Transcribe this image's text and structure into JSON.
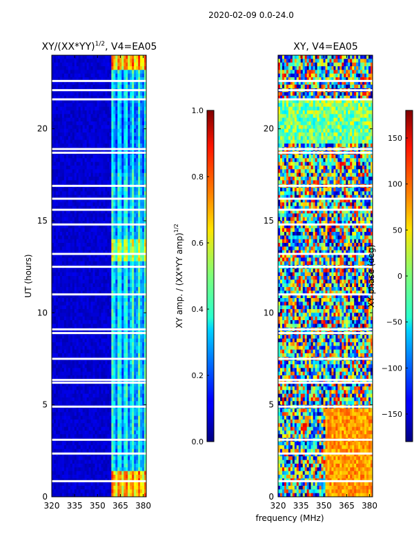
{
  "figure_title": "2020-02-09 0.0-24.0",
  "chart_data": [
    {
      "type": "heatmap",
      "title_main": "XY/(XX*YY)",
      "title_sup": "1/2",
      "title_tail": ", V4=EA05",
      "xlabel": "",
      "ylabel": "UT (hours)",
      "xlim": [
        320,
        382
      ],
      "ylim": [
        0,
        24
      ],
      "xticks": [
        320,
        335,
        350,
        365,
        380
      ],
      "yticks": [
        0,
        5,
        10,
        15,
        20
      ],
      "colorbar": {
        "label_main": "XY amp. / (XX*YY amp)",
        "label_sup": "1/2",
        "range": [
          0.0,
          1.0
        ],
        "ticks": [
          "0.0",
          "0.2",
          "0.4",
          "0.6",
          "0.8",
          "1.0"
        ],
        "tick_values": [
          0.0,
          0.2,
          0.4,
          0.6,
          0.8,
          1.0
        ],
        "colormap": "jet"
      },
      "gap_hours": [
        0.85,
        2.35,
        3.1,
        4.9,
        6.2,
        6.35,
        7.5,
        8.9,
        9.1,
        11.0,
        12.5,
        13.2,
        14.8,
        15.6,
        16.2,
        16.9,
        18.7,
        18.9,
        21.6,
        22.1,
        22.6
      ]
    },
    {
      "type": "heatmap",
      "title": "XY, V4=EA05",
      "xlabel": "frequency (MHz)",
      "ylabel": "",
      "xlim": [
        320,
        382
      ],
      "ylim": [
        0,
        24
      ],
      "xticks": [
        320,
        335,
        350,
        365,
        380
      ],
      "yticks": [
        0,
        5,
        10,
        15,
        20
      ],
      "colorbar": {
        "label": "XY phase (deg)",
        "range": [
          -180,
          180
        ],
        "ticks": [
          "150",
          "100",
          "50",
          "0",
          "−50",
          "−100",
          "−150"
        ],
        "tick_values": [
          150,
          100,
          50,
          0,
          -50,
          -100,
          -150
        ],
        "colormap": "jet"
      },
      "gap_hours": [
        0.85,
        2.35,
        3.1,
        4.9,
        6.2,
        6.35,
        7.5,
        8.9,
        9.1,
        11.0,
        12.5,
        13.2,
        14.8,
        15.6,
        16.2,
        16.9,
        18.7,
        18.9,
        21.6,
        22.1,
        22.6
      ]
    }
  ]
}
